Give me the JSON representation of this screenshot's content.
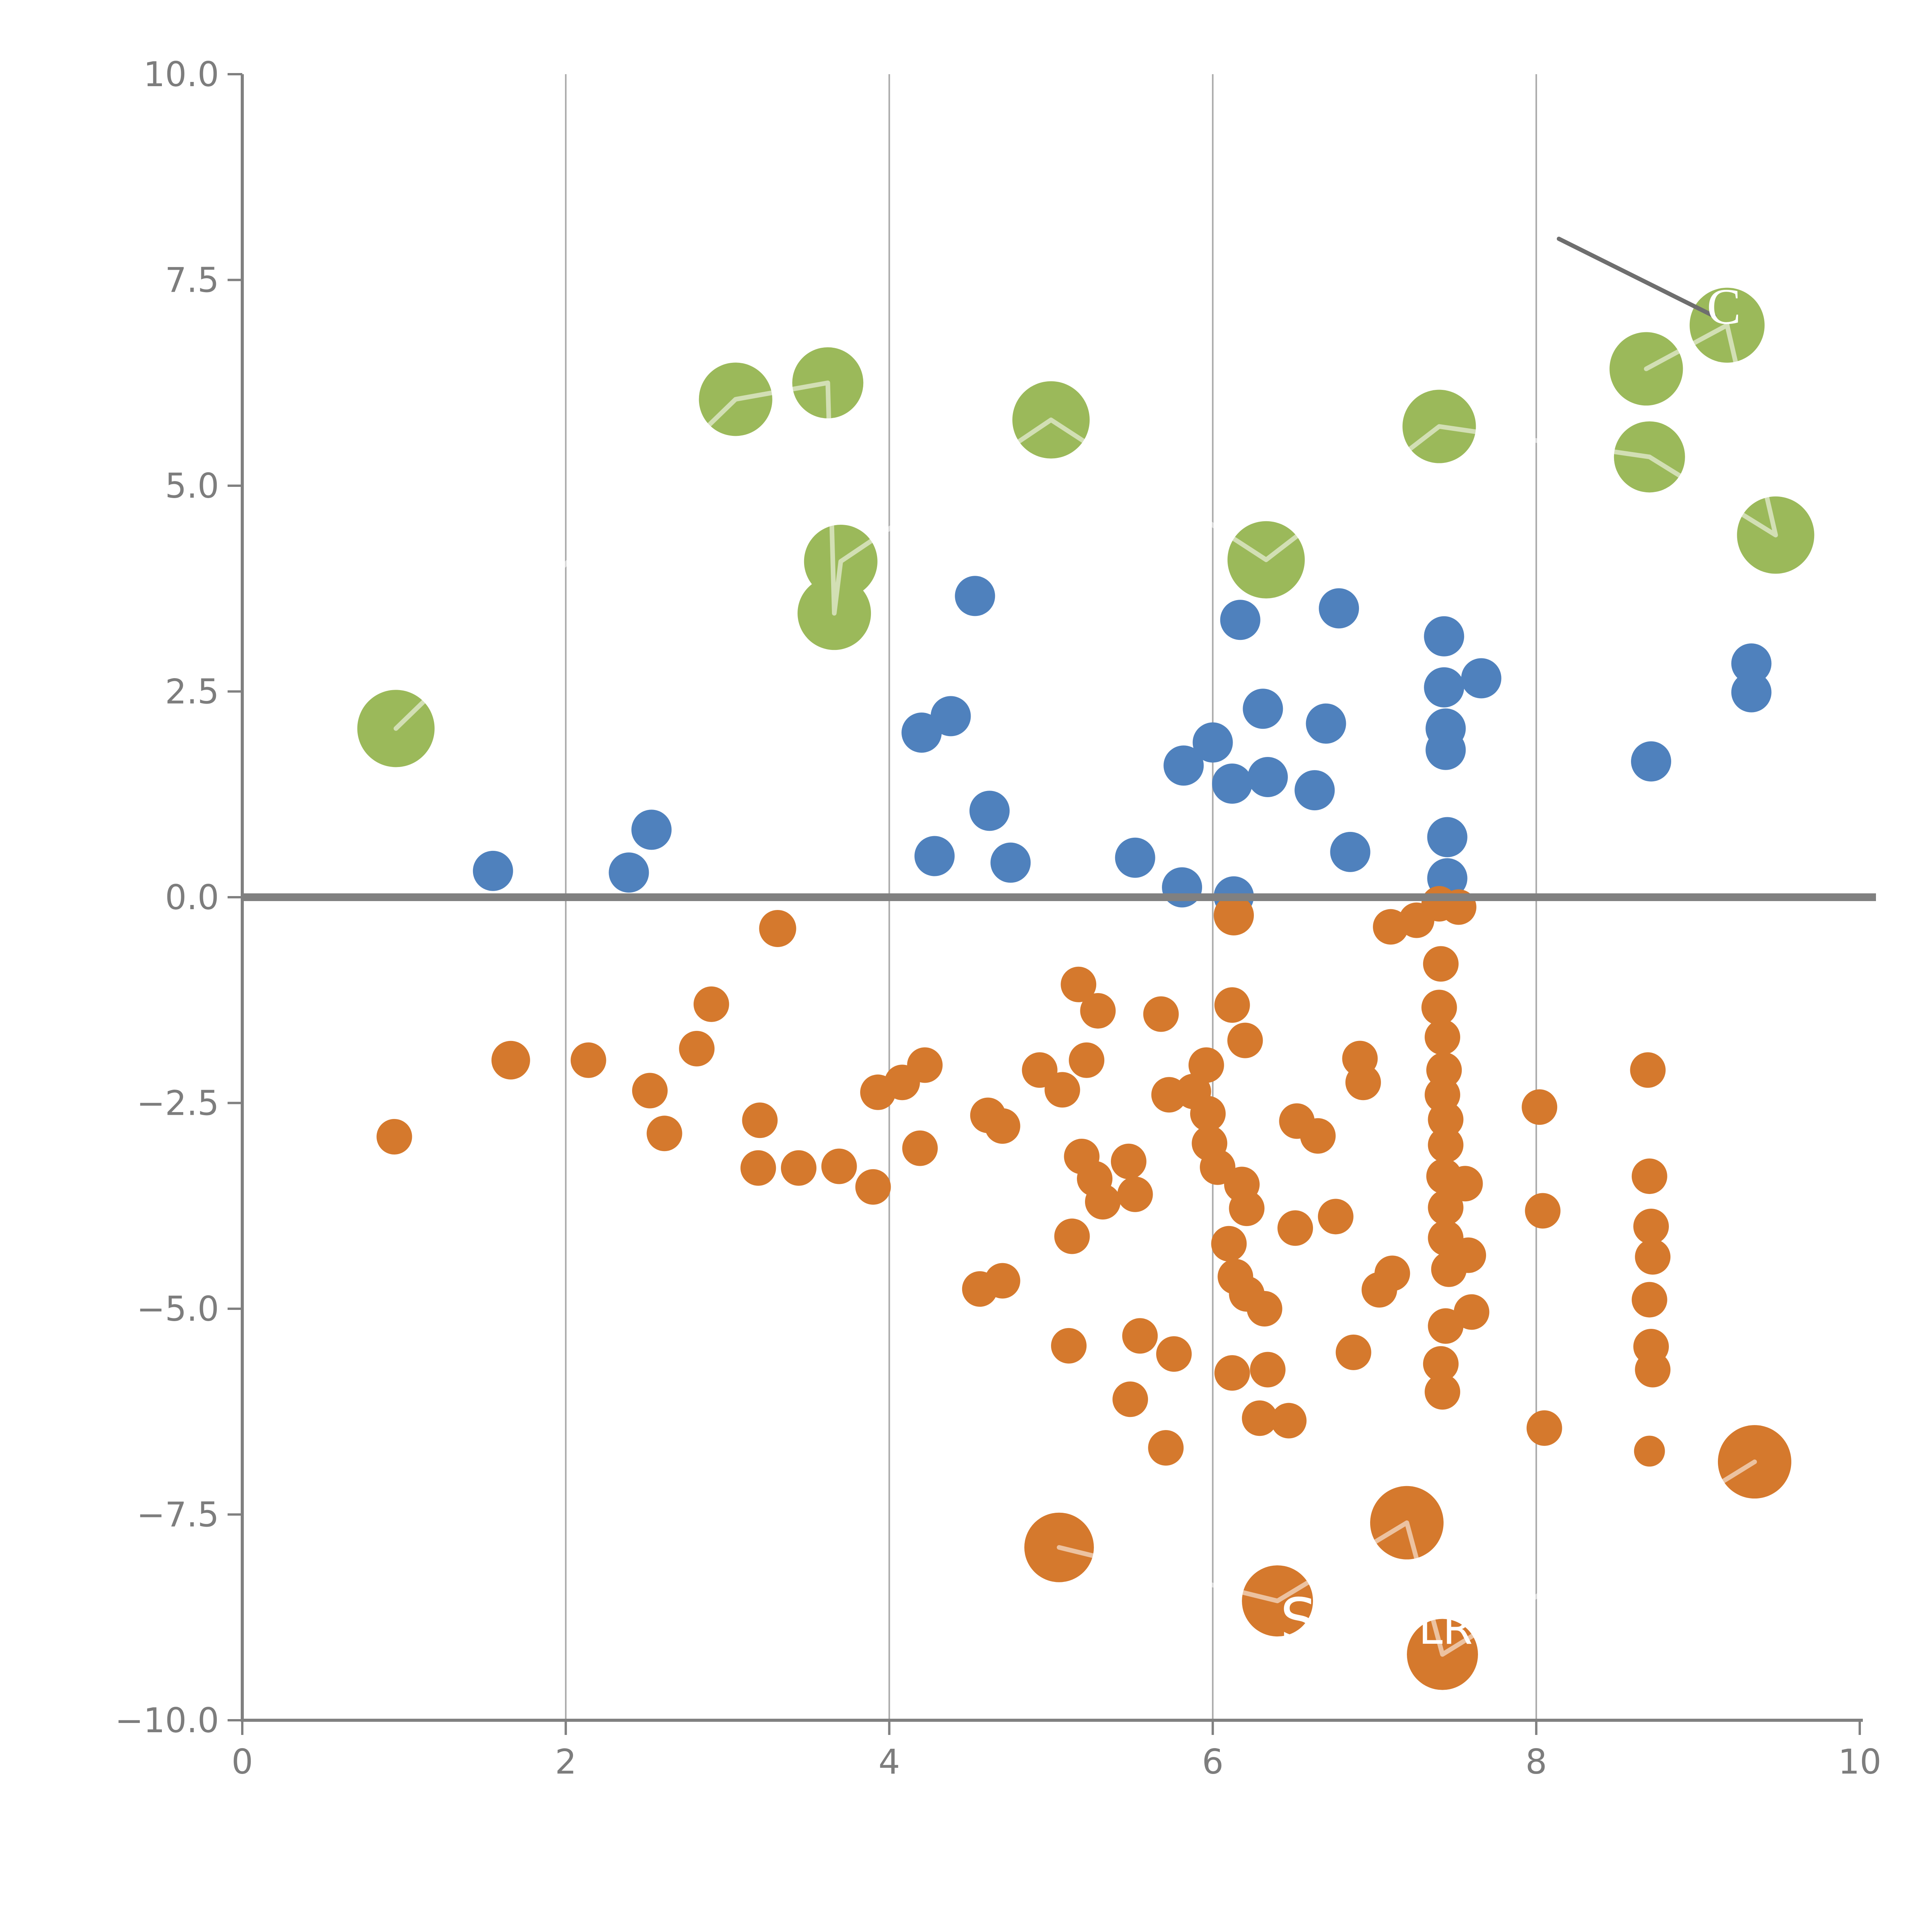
{
  "chart_data": {
    "type": "scatter",
    "title": "",
    "xlabel": "",
    "ylabel": "",
    "xlim": [
      0,
      10
    ],
    "ylim": [
      -10,
      10
    ],
    "grid": "vertical-only",
    "legend": "none",
    "x_ticks": {
      "values": [
        0,
        2,
        4,
        6,
        8,
        10
      ],
      "labels": [
        "0",
        "2",
        "4",
        "6",
        "8",
        "10"
      ]
    },
    "y_ticks": {
      "values": [
        10,
        7.5,
        5,
        2.5,
        0,
        -2.5,
        -5,
        -7.5,
        -10
      ],
      "labels": [
        "10.0",
        "7.5",
        "5.0",
        "2.5",
        "0.0",
        "−2.5",
        "−5.0",
        "−7.5",
        "−10.0"
      ]
    },
    "grid_x": [
      2,
      4,
      6,
      8
    ],
    "zero_line_y": 0,
    "series": [
      {
        "name": "green-cluster",
        "color": "#9BB95A",
        "default_radius": 95,
        "points": [
          [
            0.95,
            2.05,
            100
          ],
          [
            3.05,
            6.05,
            95
          ],
          [
            3.62,
            6.25,
            92
          ],
          [
            3.7,
            4.08,
            95
          ],
          [
            3.66,
            3.45,
            95
          ],
          [
            5.0,
            5.8,
            100
          ],
          [
            6.33,
            4.1,
            100
          ],
          [
            7.4,
            5.72,
            95
          ],
          [
            8.68,
            6.42,
            95
          ],
          [
            8.7,
            5.35,
            92
          ],
          [
            9.18,
            6.95,
            97
          ],
          [
            9.48,
            4.4,
            100
          ]
        ]
      },
      {
        "name": "blue-cluster",
        "color": "#4F81BD",
        "default_radius": 52,
        "points": [
          [
            1.55,
            0.32
          ],
          [
            2.39,
            0.3
          ],
          [
            2.53,
            0.82
          ],
          [
            4.2,
            2.0
          ],
          [
            4.38,
            2.2
          ],
          [
            4.53,
            3.66
          ],
          [
            4.28,
            0.5
          ],
          [
            4.62,
            1.05
          ],
          [
            4.75,
            0.42
          ],
          [
            5.52,
            0.48
          ],
          [
            5.81,
            0.12
          ],
          [
            6.0,
            1.88
          ],
          [
            5.82,
            1.6
          ],
          [
            6.13,
            0.01
          ],
          [
            6.17,
            3.37
          ],
          [
            6.12,
            1.38
          ],
          [
            6.31,
            2.29
          ],
          [
            6.34,
            1.46
          ],
          [
            6.7,
            2.11
          ],
          [
            6.63,
            1.3
          ],
          [
            6.78,
            3.51
          ],
          [
            6.85,
            0.55
          ],
          [
            7.43,
            3.17
          ],
          [
            7.43,
            2.55
          ],
          [
            7.66,
            2.66
          ],
          [
            7.44,
            2.05
          ],
          [
            7.44,
            1.79
          ],
          [
            7.45,
            0.73
          ],
          [
            7.45,
            0.23
          ],
          [
            8.71,
            1.65
          ],
          [
            9.33,
            2.84
          ],
          [
            9.33,
            2.49
          ]
        ]
      },
      {
        "name": "orange-cluster",
        "color": "#D5792D",
        "default_radius": 46,
        "points": [
          [
            0.94,
            -2.91
          ],
          [
            1.66,
            -1.98,
            50
          ],
          [
            2.14,
            -1.98
          ],
          [
            2.52,
            -2.35
          ],
          [
            2.61,
            -2.87
          ],
          [
            2.81,
            -1.84
          ],
          [
            2.9,
            -1.3
          ],
          [
            3.2,
            -2.71
          ],
          [
            3.19,
            -3.29
          ],
          [
            3.31,
            -0.38,
            48
          ],
          [
            3.44,
            -3.29
          ],
          [
            3.69,
            -3.27
          ],
          [
            3.9,
            -3.52
          ],
          [
            3.93,
            -2.37
          ],
          [
            4.08,
            -2.25
          ],
          [
            4.22,
            -2.04
          ],
          [
            4.19,
            -3.05
          ],
          [
            4.61,
            -2.65
          ],
          [
            4.7,
            -2.78
          ],
          [
            4.56,
            -4.76
          ],
          [
            4.7,
            -4.66
          ],
          [
            4.93,
            -2.1
          ],
          [
            5.07,
            -2.34
          ],
          [
            5.17,
            -1.06
          ],
          [
            5.29,
            -1.38
          ],
          [
            5.19,
            -3.15
          ],
          [
            5.27,
            -3.42
          ],
          [
            5.32,
            -3.7
          ],
          [
            5.22,
            -1.98
          ],
          [
            5.13,
            -4.12
          ],
          [
            5.11,
            -5.45
          ],
          [
            5.55,
            -5.33
          ],
          [
            5.76,
            -5.55
          ],
          [
            5.49,
            -6.1
          ],
          [
            5.71,
            -6.69
          ],
          [
            5.48,
            -3.21
          ],
          [
            5.52,
            -3.61
          ],
          [
            5.68,
            -1.42
          ],
          [
            5.73,
            -2.4
          ],
          [
            5.88,
            -2.36
          ],
          [
            5.96,
            -2.04
          ],
          [
            5.97,
            -2.63
          ],
          [
            5.98,
            -2.99
          ],
          [
            6.03,
            -3.28
          ],
          [
            6.12,
            -1.31
          ],
          [
            6.2,
            -1.74
          ],
          [
            6.13,
            -0.22,
            52
          ],
          [
            6.18,
            -3.49
          ],
          [
            6.21,
            -3.78
          ],
          [
            6.1,
            -4.21
          ],
          [
            6.14,
            -4.61
          ],
          [
            6.21,
            -4.82
          ],
          [
            6.32,
            -5.0
          ],
          [
            6.12,
            -5.78
          ],
          [
            6.34,
            -5.74
          ],
          [
            6.29,
            -6.33
          ],
          [
            6.47,
            -6.36
          ],
          [
            6.52,
            -2.72
          ],
          [
            6.65,
            -2.9
          ],
          [
            6.51,
            -4.02
          ],
          [
            6.76,
            -3.88
          ],
          [
            6.87,
            -5.53
          ],
          [
            6.91,
            -1.96
          ],
          [
            6.93,
            -2.25
          ],
          [
            7.03,
            -4.77
          ],
          [
            7.11,
            -4.57
          ],
          [
            7.1,
            -0.36
          ],
          [
            7.26,
            -0.28
          ],
          [
            7.4,
            -0.08
          ],
          [
            7.52,
            -0.12
          ],
          [
            7.41,
            -0.81
          ],
          [
            7.4,
            -1.34
          ],
          [
            7.42,
            -1.7
          ],
          [
            7.43,
            -2.1
          ],
          [
            7.42,
            -2.4
          ],
          [
            7.44,
            -2.7
          ],
          [
            7.44,
            -3.01
          ],
          [
            7.43,
            -3.39
          ],
          [
            7.44,
            -3.77
          ],
          [
            7.44,
            -4.14
          ],
          [
            7.46,
            -4.52
          ],
          [
            7.44,
            -5.21
          ],
          [
            7.41,
            -5.67
          ],
          [
            7.42,
            -6.01
          ],
          [
            7.56,
            -3.48
          ],
          [
            7.58,
            -4.35
          ],
          [
            7.6,
            -5.04
          ],
          [
            8.02,
            -2.55
          ],
          [
            8.04,
            -3.81
          ],
          [
            8.05,
            -6.45
          ],
          [
            8.69,
            -2.1
          ],
          [
            8.7,
            -3.39
          ],
          [
            8.71,
            -4.0
          ],
          [
            8.72,
            -4.37
          ],
          [
            8.7,
            -4.89
          ],
          [
            8.71,
            -5.46
          ],
          [
            8.72,
            -5.74
          ],
          [
            8.7,
            -6.73,
            40
          ],
          [
            5.05,
            -7.9,
            90
          ],
          [
            6.4,
            -8.55,
            92
          ],
          [
            7.2,
            -7.6,
            95
          ],
          [
            7.42,
            -9.2,
            92
          ],
          [
            9.35,
            -6.86,
            95
          ]
        ]
      }
    ],
    "overlay_lines": [
      {
        "name": "white-line-green-path",
        "points": [
          [
            0.95,
            2.05
          ],
          [
            3.05,
            6.05
          ],
          [
            3.62,
            6.25
          ],
          [
            3.66,
            3.45
          ],
          [
            3.7,
            4.08
          ],
          [
            5.0,
            5.8
          ],
          [
            6.33,
            4.1
          ],
          [
            7.4,
            5.72
          ],
          [
            8.7,
            5.35
          ],
          [
            9.48,
            4.4
          ],
          [
            9.18,
            6.95
          ],
          [
            8.68,
            6.42
          ]
        ]
      },
      {
        "name": "white-line-orange-path",
        "points": [
          [
            5.05,
            -7.9
          ],
          [
            6.4,
            -8.55
          ],
          [
            7.2,
            -7.6
          ],
          [
            7.42,
            -9.2
          ],
          [
            9.35,
            -6.86
          ]
        ]
      }
    ],
    "annotation": {
      "label": "C",
      "label_x": 9.16,
      "label_y": 6.97,
      "label_size": 132,
      "line_from": [
        8.14,
        8.0
      ],
      "line_to": [
        9.1,
        7.06
      ]
    },
    "watermark_letters": [
      {
        "text": "S",
        "x": 6.53,
        "y": -9.02,
        "size": 150
      },
      {
        "text": "LR",
        "x": 7.44,
        "y": -9.07,
        "size": 112
      }
    ]
  },
  "colors": {
    "background": "#ffffff",
    "axis": "#808080",
    "tick_label": "#7d7d7d",
    "grid": "#a9a9a9",
    "zero_line": "#808080",
    "annotation_line": "#6e6e6e",
    "overlay_white": "rgba(255,255,255,0.55)",
    "watermark_white": "#ffffff"
  }
}
